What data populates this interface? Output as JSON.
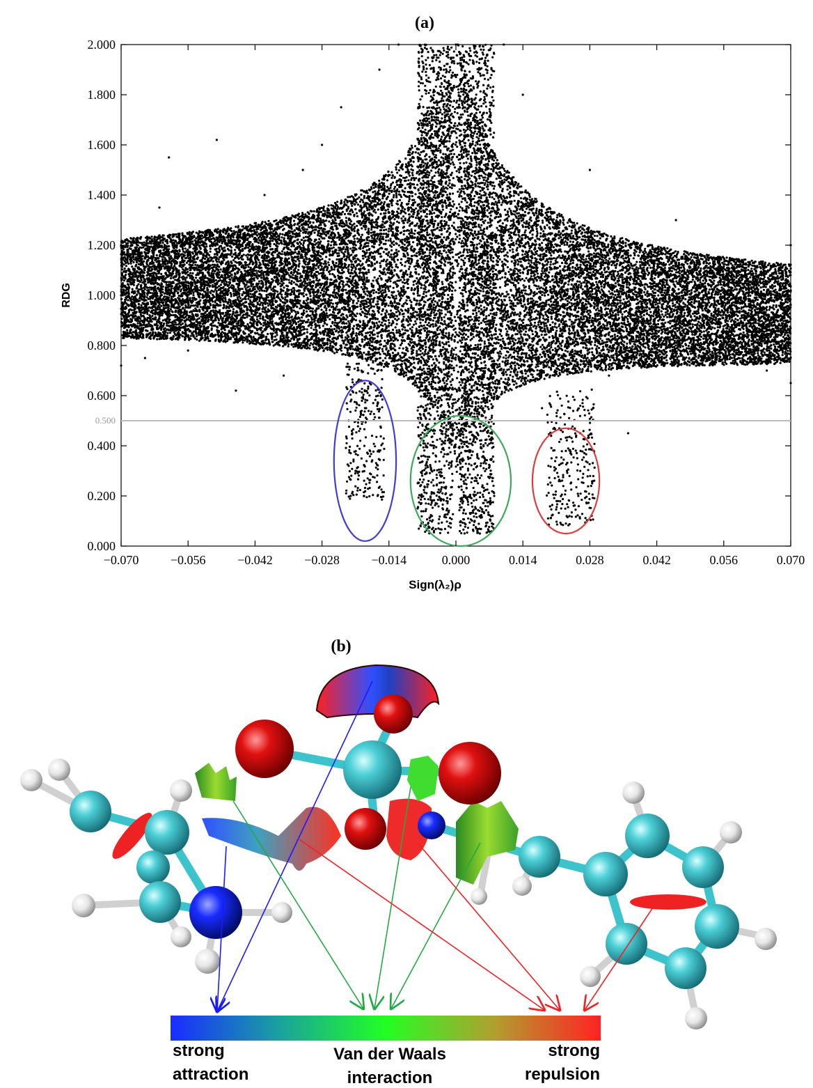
{
  "panels": {
    "a_label": "(a)",
    "b_label": "(b)"
  },
  "chart_data": {
    "type": "scatter",
    "title": "(a)",
    "xlabel": "Sign(λ₂)ρ",
    "ylabel": "RDG",
    "xlim": [
      -0.07,
      0.07
    ],
    "ylim": [
      0.0,
      2.0
    ],
    "x_ticks": [
      -0.07,
      -0.056,
      -0.042,
      -0.028,
      -0.014,
      0.0,
      0.014,
      0.028,
      0.042,
      0.056,
      0.07
    ],
    "x_tick_labels": [
      "−0.070",
      "−0.056",
      "−0.042",
      "−0.028",
      "−0.014",
      "0.000",
      "0.014",
      "0.028",
      "0.042",
      "0.056",
      "0.070"
    ],
    "y_ticks": [
      0.0,
      0.2,
      0.4,
      0.6,
      0.8,
      1.0,
      1.2,
      1.4,
      1.6,
      1.8,
      2.0
    ],
    "y_tick_labels": [
      "0.000",
      "0.200",
      "0.400",
      "0.600",
      "0.800",
      "1.000",
      "1.200",
      "1.400",
      "1.600",
      "1.800",
      "2.000"
    ],
    "reference_line": {
      "y": 0.5,
      "label": "0.500",
      "color": "#bbbbbb"
    },
    "grid": false,
    "marker_color": "#000000",
    "series": [
      {
        "type": "scatter",
        "points": [
          [
            -0.07,
            0.72
          ],
          [
            -0.07,
            1.0
          ],
          [
            -0.07,
            1.2
          ],
          [
            -0.065,
            0.75
          ],
          [
            -0.062,
            1.35
          ],
          [
            -0.06,
            1.55
          ],
          [
            -0.056,
            0.78
          ],
          [
            -0.056,
            1.05
          ],
          [
            -0.052,
            1.25
          ],
          [
            -0.05,
            1.62
          ],
          [
            -0.046,
            0.62
          ],
          [
            -0.042,
            0.85
          ],
          [
            -0.042,
            1.15
          ],
          [
            -0.04,
            1.4
          ],
          [
            -0.036,
            0.68
          ],
          [
            -0.032,
            1.5
          ],
          [
            -0.028,
            0.9
          ],
          [
            -0.028,
            1.6
          ],
          [
            -0.024,
            1.75
          ],
          [
            -0.022,
            0.2
          ],
          [
            -0.021,
            0.3
          ],
          [
            -0.02,
            0.42
          ],
          [
            -0.019,
            0.55
          ],
          [
            -0.018,
            0.65
          ],
          [
            -0.018,
            0.9
          ],
          [
            -0.016,
            1.9
          ],
          [
            -0.012,
            2.0
          ],
          [
            -0.01,
            1.3
          ],
          [
            -0.008,
            0.15
          ],
          [
            -0.007,
            0.3
          ],
          [
            -0.006,
            0.6
          ],
          [
            -0.005,
            0.12
          ],
          [
            -0.004,
            1.0
          ],
          [
            -0.002,
            0.18
          ],
          [
            0.0,
            2.0
          ],
          [
            0.002,
            0.2
          ],
          [
            0.003,
            0.9
          ],
          [
            0.005,
            0.05
          ],
          [
            0.006,
            0.35
          ],
          [
            0.008,
            0.2
          ],
          [
            0.01,
            2.0
          ],
          [
            0.014,
            1.8
          ],
          [
            0.018,
            0.55
          ],
          [
            0.02,
            0.35
          ],
          [
            0.022,
            0.15
          ],
          [
            0.023,
            0.09
          ],
          [
            0.024,
            0.25
          ],
          [
            0.026,
            0.45
          ],
          [
            0.028,
            1.5
          ],
          [
            0.032,
            0.68
          ],
          [
            0.036,
            0.45
          ],
          [
            0.042,
            0.75
          ],
          [
            0.046,
            1.3
          ],
          [
            0.05,
            0.85
          ],
          [
            0.056,
            0.75
          ],
          [
            0.06,
            1.1
          ],
          [
            0.065,
            0.7
          ],
          [
            0.07,
            0.65
          ],
          [
            0.07,
            1.2
          ]
        ]
      }
    ],
    "ellipses": [
      {
        "color": "#3c3cdc",
        "cx": -0.019,
        "cy": 0.34,
        "rx": 0.0065,
        "ry": 0.32
      },
      {
        "color": "#3caa5a",
        "cx": 0.001,
        "cy": 0.26,
        "rx": 0.0105,
        "ry": 0.26
      },
      {
        "color": "#dc3c3c",
        "cx": 0.023,
        "cy": 0.26,
        "rx": 0.007,
        "ry": 0.21
      }
    ]
  },
  "colorbar": {
    "left_label_1": "strong",
    "left_label_2": "attraction",
    "center_label_1": "Van der Waals",
    "center_label_2": "interaction",
    "right_label_1": "strong",
    "right_label_2": "repulsion",
    "stops": [
      "#1a2cff",
      "#1aa0a0",
      "#22ff22",
      "#b0a030",
      "#ff2222"
    ]
  }
}
